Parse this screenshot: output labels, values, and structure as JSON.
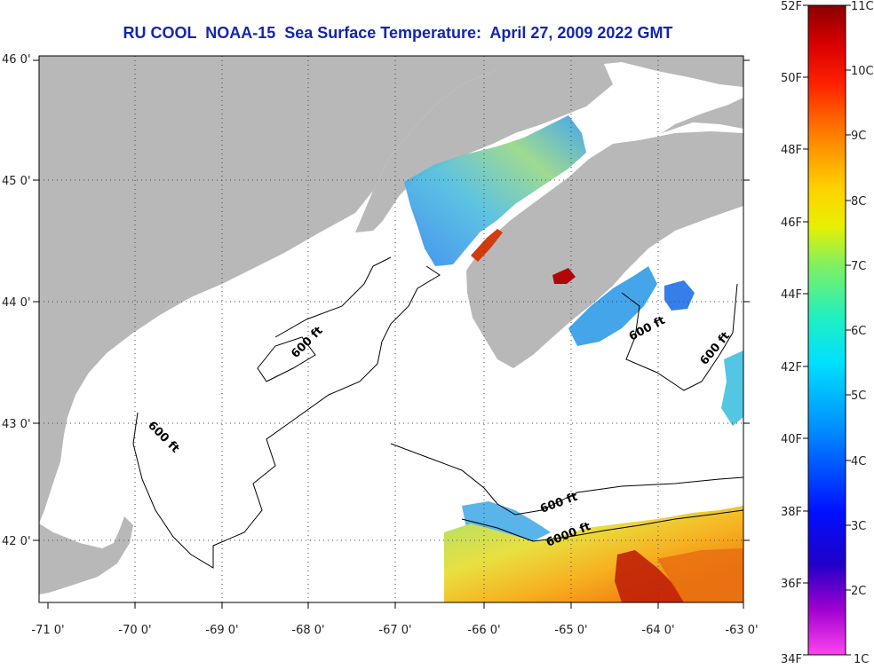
{
  "title": "RU COOL  NOAA-15  Sea Surface Temperature:  April 27, 2009 2022 GMT",
  "lat_labels": [
    "46 0'",
    "45 0'",
    "44 0'",
    "43 0'",
    "42 0'"
  ],
  "lon_labels": [
    "-71 0'",
    "-70 0'",
    "-69 0'",
    "-68 0'",
    "-67 0'",
    "-66 0'",
    "-65 0'",
    "-64 0'",
    "-63 0'"
  ],
  "contour_labels": [
    "600 ft",
    "600 ft",
    "600 ft",
    "600 ft",
    "600 ft",
    "6000 ft"
  ],
  "scale_f": [
    "52F",
    "50F",
    "48F",
    "46F",
    "44F",
    "42F",
    "40F",
    "38F",
    "36F",
    "34F"
  ],
  "scale_c": [
    "11C",
    "10C",
    "9C",
    "8C",
    "7C",
    "6C",
    "5C",
    "4C",
    "3C",
    "2C",
    "1C"
  ],
  "colors": {
    "land": "#b8b8b8",
    "ocean_no_data": "#ffffff",
    "title": "#1226b0",
    "scale_cold": "#ff44ee",
    "scale_hot": "#8b0000"
  }
}
